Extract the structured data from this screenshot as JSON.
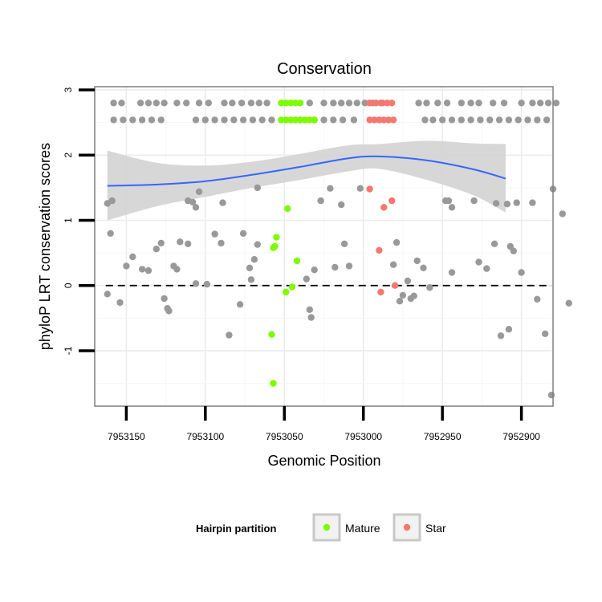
{
  "chart_data": {
    "type": "scatter",
    "title": "Conservation",
    "xlabel": "Genomic Position",
    "ylabel": "phyloP LRT conservation scores",
    "x_reversed": true,
    "xlim": [
      7953170,
      7952880
    ],
    "ylim": [
      -1.85,
      3.05
    ],
    "x_ticks": [
      7953150,
      7953100,
      7953050,
      7953000,
      7952950,
      7952900
    ],
    "x_tick_labels": [
      "7953150",
      "7953100",
      "7953050",
      "7953000",
      "7952950",
      "7952900"
    ],
    "y_ticks": [
      -1,
      0,
      1,
      2,
      3
    ],
    "y_tick_labels": [
      "-1",
      "0",
      "1",
      "2",
      "3"
    ],
    "grid": true,
    "reference_line": {
      "y": 0,
      "style": "dashed"
    },
    "colors": {
      "Other": "#999999",
      "Mature": "#7cfc00",
      "Star": "#f8766d",
      "smooth": "#3366ff",
      "band": "#d3d3d3"
    },
    "legend": {
      "placement": "bottom",
      "title": "Hairpin partition",
      "entries": [
        {
          "label": "Mature",
          "color": "#7cfc00"
        },
        {
          "label": "Star",
          "color": "#f8766d"
        }
      ]
    },
    "smooth_band": {
      "x": [
        7953162,
        7953130,
        7953100,
        7953070,
        7953040,
        7953010,
        7952990,
        7952960,
        7952930,
        7952910
      ],
      "y": [
        1.53,
        1.55,
        1.6,
        1.7,
        1.82,
        1.95,
        1.98,
        1.92,
        1.78,
        1.64
      ],
      "lower": [
        1.0,
        1.22,
        1.36,
        1.5,
        1.62,
        1.75,
        1.79,
        1.62,
        1.38,
        1.12
      ],
      "upper": [
        2.07,
        1.88,
        1.84,
        1.9,
        2.02,
        2.15,
        2.17,
        2.22,
        2.18,
        2.17
      ]
    },
    "series": [
      {
        "name": "Other",
        "color": "#999999",
        "points": [
          [
            7953158,
            2.8
          ],
          [
            7953153,
            2.8
          ],
          [
            7953141,
            2.8
          ],
          [
            7953136,
            2.8
          ],
          [
            7953131,
            2.8
          ],
          [
            7953126,
            2.8
          ],
          [
            7953118,
            2.8
          ],
          [
            7953112,
            2.8
          ],
          [
            7953104,
            2.8
          ],
          [
            7953098,
            2.8
          ],
          [
            7953088,
            2.8
          ],
          [
            7953083,
            2.8
          ],
          [
            7953077,
            2.8
          ],
          [
            7953071,
            2.8
          ],
          [
            7953066,
            2.8
          ],
          [
            7953061,
            2.8
          ],
          [
            7953034,
            2.8
          ],
          [
            7953025,
            2.8
          ],
          [
            7953019,
            2.8
          ],
          [
            7953014,
            2.8
          ],
          [
            7953009,
            2.8
          ],
          [
            7953004,
            2.8
          ],
          [
            7952999,
            2.8
          ],
          [
            7952994,
            2.8
          ],
          [
            7952989,
            2.8
          ],
          [
            7952965,
            2.8
          ],
          [
            7952960,
            2.8
          ],
          [
            7952953,
            2.8
          ],
          [
            7952947,
            2.8
          ],
          [
            7952938,
            2.8
          ],
          [
            7952932,
            2.8
          ],
          [
            7952927,
            2.8
          ],
          [
            7952918,
            2.8
          ],
          [
            7952911,
            2.8
          ],
          [
            7952900,
            2.8
          ],
          [
            7952893,
            2.8
          ],
          [
            7952888,
            2.8
          ],
          [
            7952883,
            2.8
          ],
          [
            7952878,
            2.8
          ],
          [
            7953158,
            2.54
          ],
          [
            7953152,
            2.54
          ],
          [
            7953146,
            2.54
          ],
          [
            7953140,
            2.54
          ],
          [
            7953134,
            2.54
          ],
          [
            7953128,
            2.54
          ],
          [
            7953106,
            2.54
          ],
          [
            7953100,
            2.54
          ],
          [
            7953094,
            2.54
          ],
          [
            7953088,
            2.54
          ],
          [
            7953082,
            2.54
          ],
          [
            7953076,
            2.54
          ],
          [
            7953070,
            2.54
          ],
          [
            7953064,
            2.54
          ],
          [
            7953058,
            2.54
          ],
          [
            7953031,
            2.54
          ],
          [
            7953025,
            2.54
          ],
          [
            7953019,
            2.54
          ],
          [
            7953013,
            2.54
          ],
          [
            7953006,
            2.54
          ],
          [
            7952961,
            2.54
          ],
          [
            7952956,
            2.54
          ],
          [
            7952950,
            2.54
          ],
          [
            7952944,
            2.54
          ],
          [
            7952938,
            2.54
          ],
          [
            7952932,
            2.54
          ],
          [
            7952926,
            2.54
          ],
          [
            7952920,
            2.54
          ],
          [
            7952914,
            2.54
          ],
          [
            7952908,
            2.54
          ],
          [
            7952902,
            2.54
          ],
          [
            7952896,
            2.54
          ],
          [
            7952890,
            2.54
          ],
          [
            7952884,
            2.54
          ],
          [
            7953162,
            1.26
          ],
          [
            7953159,
            1.3
          ],
          [
            7953111,
            1.3
          ],
          [
            7953108,
            1.28
          ],
          [
            7953106,
            1.2
          ],
          [
            7953104,
            1.44
          ],
          [
            7953089,
            1.27
          ],
          [
            7953067,
            1.5
          ],
          [
            7953027,
            1.3
          ],
          [
            7953021,
            1.49
          ],
          [
            7953014,
            1.24
          ],
          [
            7953002,
            1.49
          ],
          [
            7952948,
            1.3
          ],
          [
            7952946,
            1.3
          ],
          [
            7952944,
            1.2
          ],
          [
            7952930,
            1.3
          ],
          [
            7952916,
            1.26
          ],
          [
            7952909,
            1.25
          ],
          [
            7952903,
            1.27
          ],
          [
            7952893,
            1.27
          ],
          [
            7952880,
            1.48
          ],
          [
            7952874,
            1.1
          ],
          [
            7953160,
            0.8
          ],
          [
            7953140,
            0.25
          ],
          [
            7953146,
            0.44
          ],
          [
            7953136,
            0.23
          ],
          [
            7953131,
            0.56
          ],
          [
            7953128,
            0.65
          ],
          [
            7953126,
            -0.2
          ],
          [
            7953124,
            -0.35
          ],
          [
            7953123,
            -0.39
          ],
          [
            7953120,
            0.3
          ],
          [
            7953118,
            0.25
          ],
          [
            7953116,
            0.67
          ],
          [
            7953111,
            0.64
          ],
          [
            7953106,
            0.03
          ],
          [
            7953099,
            0.02
          ],
          [
            7953094,
            0.79
          ],
          [
            7953090,
            0.65
          ],
          [
            7953076,
            0.8
          ],
          [
            7953072,
            0.27
          ],
          [
            7953071,
            0.09
          ],
          [
            7953069,
            0.4
          ],
          [
            7953067,
            0.63
          ],
          [
            7953036,
            0.1
          ],
          [
            7953034,
            -0.37
          ],
          [
            7953033,
            -0.49
          ],
          [
            7953031,
            0.24
          ],
          [
            7953018,
            0.28
          ],
          [
            7953012,
            0.64
          ],
          [
            7953009,
            0.3
          ],
          [
            7952979,
            0.66
          ],
          [
            7952981,
            0.32
          ],
          [
            7952977,
            -0.24
          ],
          [
            7952975,
            -0.15
          ],
          [
            7952972,
            0.07
          ],
          [
            7952970,
            -0.2
          ],
          [
            7952968,
            -0.16
          ],
          [
            7952966,
            0.38
          ],
          [
            7952962,
            0.27
          ],
          [
            7952958,
            -0.03
          ],
          [
            7952944,
            0.2
          ],
          [
            7952927,
            0.36
          ],
          [
            7952922,
            0.26
          ],
          [
            7952917,
            0.64
          ],
          [
            7952907,
            0.6
          ],
          [
            7952905,
            0.53
          ],
          [
            7952900,
            0.2
          ],
          [
            7952913,
            -0.77
          ],
          [
            7952908,
            -0.67
          ],
          [
            7952890,
            -0.21
          ],
          [
            7952885,
            -0.74
          ],
          [
            7952881,
            -1.68
          ],
          [
            7952870,
            -0.27
          ],
          [
            7953162,
            -0.13
          ],
          [
            7953154,
            -0.26
          ],
          [
            7953085,
            -0.76
          ],
          [
            7953078,
            -0.29
          ],
          [
            7953150,
            0.3
          ]
        ]
      },
      {
        "name": "Mature",
        "color": "#7cfc00",
        "points": [
          [
            7953052,
            2.8
          ],
          [
            7953049,
            2.8
          ],
          [
            7953046,
            2.8
          ],
          [
            7953043,
            2.8
          ],
          [
            7953040,
            2.8
          ],
          [
            7953052,
            2.54
          ],
          [
            7953049,
            2.54
          ],
          [
            7953046,
            2.54
          ],
          [
            7953043,
            2.54
          ],
          [
            7953040,
            2.54
          ],
          [
            7953037,
            2.54
          ],
          [
            7953034,
            2.54
          ],
          [
            7953031,
            2.54
          ],
          [
            7953048,
            1.18
          ],
          [
            7953055,
            0.74
          ],
          [
            7953056,
            0.6
          ],
          [
            7953057,
            0.58
          ],
          [
            7953042,
            0.38
          ],
          [
            7953045,
            -0.02
          ],
          [
            7953049,
            -0.1
          ],
          [
            7953058,
            -0.75
          ],
          [
            7953057,
            -1.5
          ]
        ]
      },
      {
        "name": "Star",
        "color": "#f8766d",
        "points": [
          [
            7952996,
            2.8
          ],
          [
            7952992,
            2.8
          ],
          [
            7952988,
            2.8
          ],
          [
            7952985,
            2.8
          ],
          [
            7952982,
            2.8
          ],
          [
            7952996,
            2.54
          ],
          [
            7952993,
            2.54
          ],
          [
            7952990,
            2.54
          ],
          [
            7952987,
            2.54
          ],
          [
            7952984,
            2.54
          ],
          [
            7952981,
            2.54
          ],
          [
            7952996,
            1.48
          ],
          [
            7952982,
            1.3
          ],
          [
            7952987,
            1.2
          ],
          [
            7952990,
            0.54
          ],
          [
            7952989,
            -0.1
          ],
          [
            7952980,
            0.0
          ]
        ]
      }
    ]
  }
}
